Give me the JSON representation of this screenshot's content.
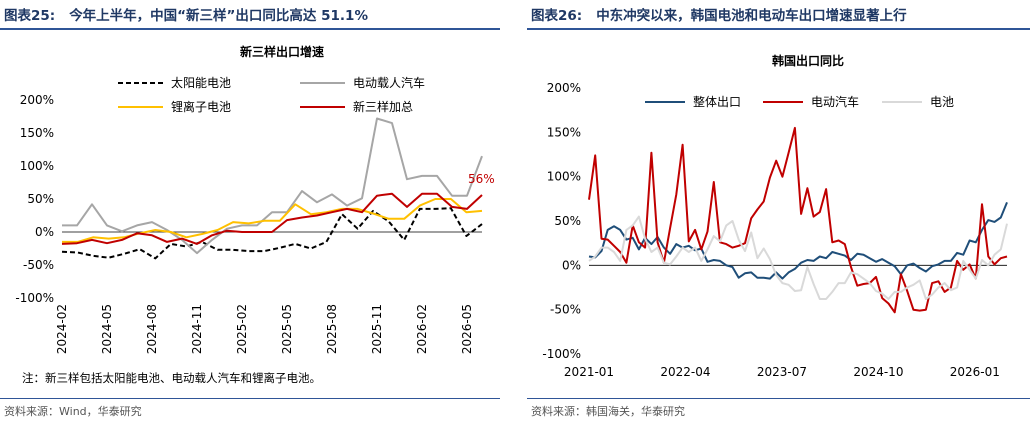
{
  "left": {
    "figure_label": "图表25:",
    "figure_title": "今年上半年，中国“新三样”出口同比高达 51.1%",
    "note": "注：新三样包括太阳能电池、电动载人汽车和锂离子电池。",
    "source": "资料来源：Wind，华泰研究"
  },
  "right": {
    "figure_label": "图表26:",
    "figure_title": "中东冲突以来，韩国电池和电动车出口增速显著上行",
    "source": "资料来源：韩国海关，华泰研究"
  },
  "chart_data": [
    {
      "type": "line",
      "title": "新三样出口增速",
      "ylim": [
        -100,
        200
      ],
      "y_ticks": [
        "-100%",
        "-50%",
        "0%",
        "50%",
        "100%",
        "150%",
        "200%"
      ],
      "x_tick_labels": [
        "2024-02",
        "2024-05",
        "2024-08",
        "2024-11",
        "2025-02",
        "2025-05",
        "2025-08",
        "2025-11",
        "2026-02",
        "2026-05"
      ],
      "x_start": "2024-02",
      "x_end": "2026-06",
      "grid": false,
      "legend": "top",
      "annotation": "56%",
      "series": [
        {
          "name": "太阳能电池",
          "color": "#000000",
          "style": "dashed",
          "values": [
            -30,
            -31,
            -36,
            -39,
            -33,
            -26,
            -40,
            -18,
            -22,
            -15,
            -27,
            -27,
            -29,
            -29,
            -24,
            -18,
            -25,
            -15,
            27,
            5,
            32,
            16,
            -12,
            35,
            35,
            36,
            -6,
            12
          ]
        },
        {
          "name": "电动载人汽车",
          "color": "#a6a6a6",
          "style": "solid",
          "values": [
            10,
            10,
            42,
            10,
            1,
            10,
            15,
            3,
            -12,
            -32,
            -12,
            5,
            10,
            10,
            30,
            30,
            62,
            45,
            57,
            40,
            51,
            172,
            165,
            80,
            85,
            85,
            55,
            55,
            115
          ]
        },
        {
          "name": "锂离子电池",
          "color": "#ffc000",
          "style": "solid",
          "values": [
            -15,
            -15,
            -8,
            -10,
            -8,
            -2,
            3,
            0,
            -8,
            -3,
            3,
            15,
            13,
            17,
            17,
            42,
            27,
            30,
            35,
            35,
            28,
            20,
            20,
            40,
            50,
            50,
            30,
            32
          ]
        },
        {
          "name": "新三样加总",
          "color": "#c00000",
          "style": "solid",
          "values": [
            -18,
            -17,
            -12,
            -17,
            -12,
            -2,
            -5,
            -15,
            -10,
            -18,
            -5,
            2,
            0,
            0,
            0,
            18,
            22,
            25,
            30,
            35,
            30,
            55,
            58,
            38,
            58,
            58,
            38,
            35,
            56
          ]
        }
      ]
    },
    {
      "type": "line",
      "title": "韩国出口同比",
      "ylim": [
        -100,
        200
      ],
      "y_ticks": [
        "-100%",
        "-50%",
        "0%",
        "50%",
        "100%",
        "150%",
        "200%"
      ],
      "x_tick_labels": [
        "2021-01",
        "2022-04",
        "2023-07",
        "2024-10",
        "2026-01"
      ],
      "x_start": "2021-01",
      "x_end": "2026-06",
      "grid": false,
      "legend": "top",
      "series": [
        {
          "name": "整体出口",
          "color": "#1f4e79",
          "style": "solid",
          "values": [
            10,
            9,
            16,
            40,
            44,
            40,
            29,
            31,
            18,
            31,
            24,
            32,
            20,
            13,
            24,
            20,
            22,
            17,
            19,
            4,
            6,
            5,
            0,
            -2,
            -14,
            -9,
            -8,
            -14,
            -14,
            -15,
            -8,
            -15,
            -8,
            -4,
            3,
            6,
            5,
            10,
            8,
            15,
            13,
            11,
            6,
            13,
            12,
            8,
            4,
            7,
            3,
            -1,
            -10,
            0,
            2,
            -3,
            -7,
            -1,
            1,
            5,
            5,
            14,
            12,
            28,
            26,
            40,
            51,
            49,
            54,
            71
          ]
        },
        {
          "name": "电动汽车",
          "color": "#c00000",
          "style": "solid",
          "values": [
            74,
            124,
            30,
            29,
            22,
            15,
            3,
            45,
            26,
            20,
            127,
            26,
            3,
            42,
            80,
            136,
            27,
            40,
            18,
            38,
            94,
            26,
            24,
            20,
            22,
            25,
            53,
            63,
            72,
            99,
            118,
            100,
            127,
            155,
            58,
            87,
            55,
            60,
            86,
            26,
            28,
            24,
            -2,
            -23,
            -21,
            -20,
            -13,
            -37,
            -43,
            -53,
            -10,
            -29,
            -50,
            -51,
            -50,
            -20,
            -18,
            -30,
            -25,
            5,
            -5,
            1,
            -15,
            69,
            10,
            1,
            8,
            10
          ]
        },
        {
          "name": "电池",
          "color": "#d9d9d9",
          "style": "solid",
          "values": [
            5,
            10,
            20,
            20,
            15,
            5,
            40,
            45,
            55,
            30,
            15,
            20,
            3,
            1,
            10,
            20,
            15,
            20,
            5,
            18,
            33,
            27,
            45,
            50,
            29,
            16,
            37,
            8,
            19,
            7,
            -11,
            -20,
            -22,
            -29,
            -28,
            -2,
            -21,
            -38,
            -38,
            -30,
            -20,
            -20,
            -8,
            -10,
            -15,
            -20,
            -29,
            -32,
            -38,
            -30,
            -30,
            -25,
            -22,
            -17,
            -38,
            -33,
            -25,
            -20,
            -28,
            -25,
            5,
            -5,
            -15,
            6,
            0,
            12,
            18,
            47
          ]
        }
      ]
    }
  ]
}
